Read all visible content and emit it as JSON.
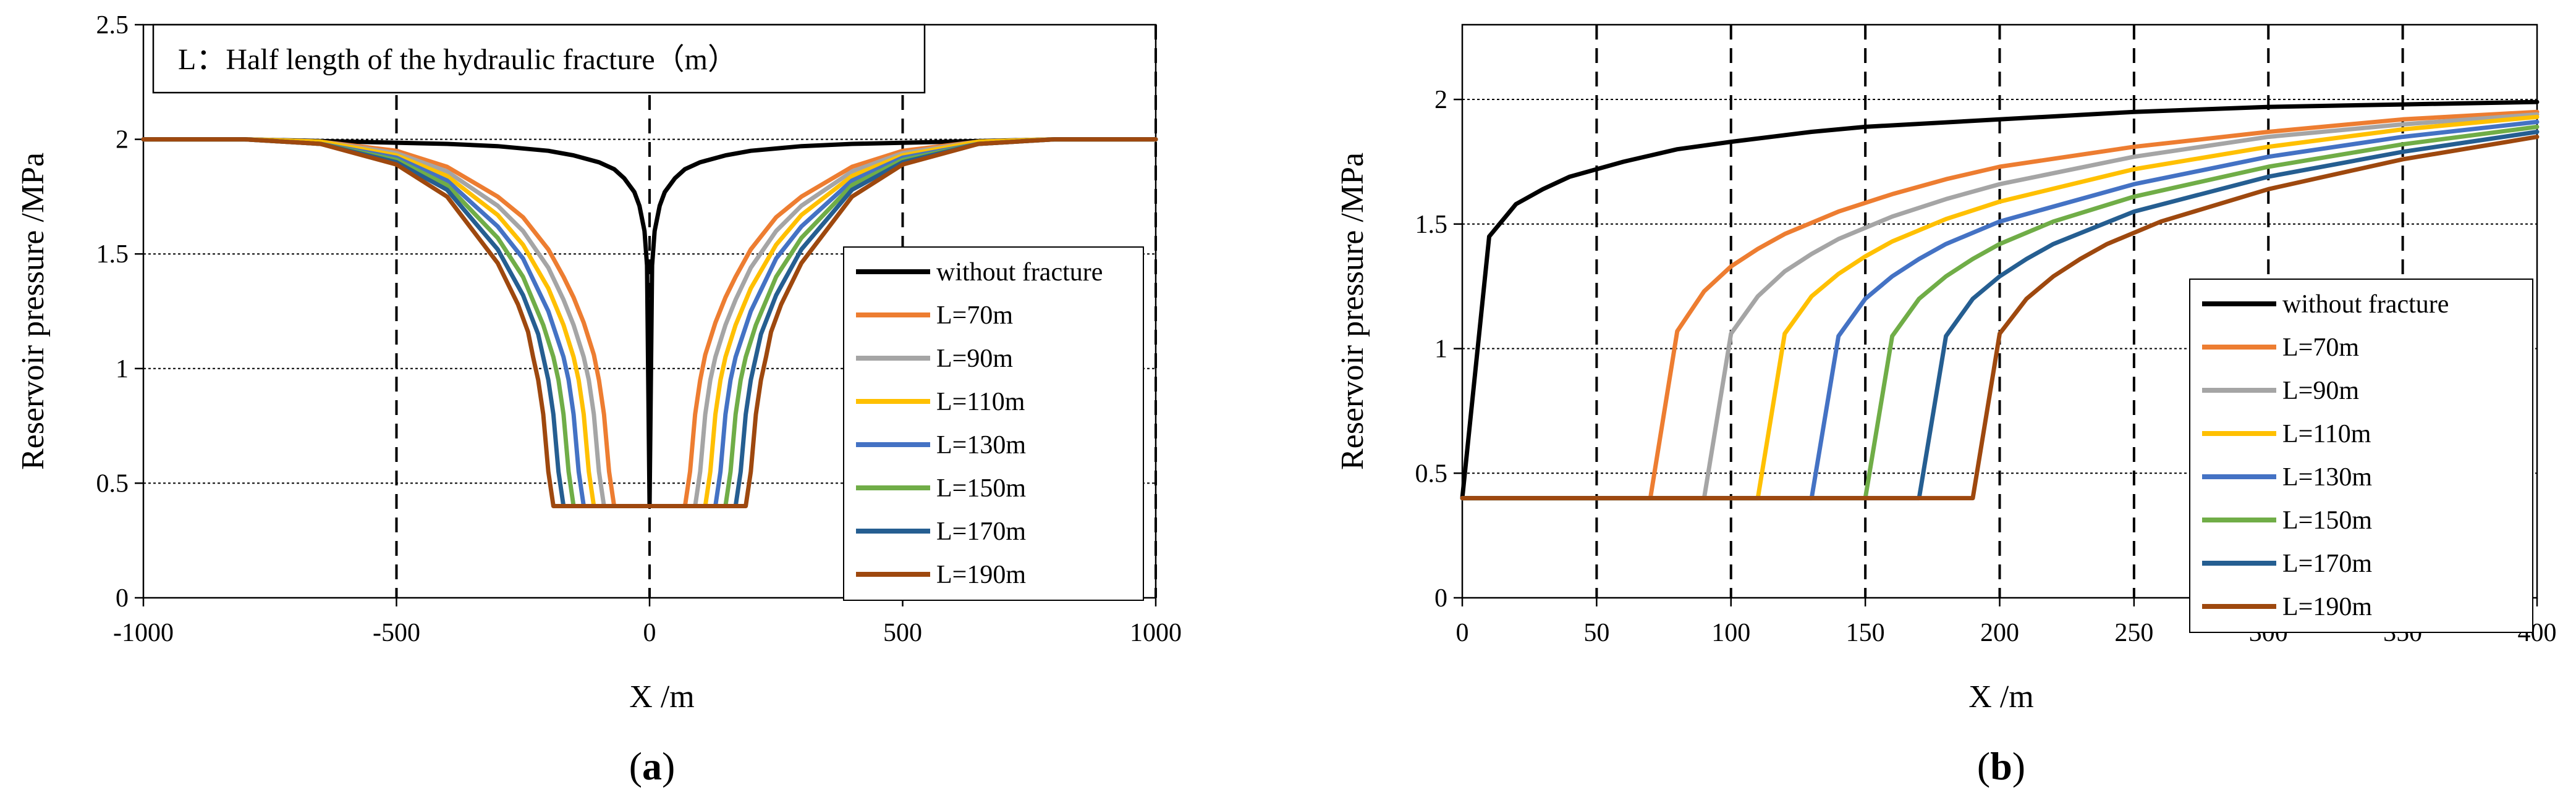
{
  "chart_data": [
    {
      "type": "line",
      "panel_label": "a",
      "xlabel": "X /m",
      "ylabel": "Reservoir pressure /MPa",
      "xlim": [
        -1000,
        1000
      ],
      "ylim": [
        0,
        2.5
      ],
      "xticks": [
        "-1000",
        "-500",
        "0",
        "500",
        "1000"
      ],
      "yticks": [
        "0",
        "0.5",
        "1",
        "1.5",
        "2",
        "2.5"
      ],
      "annotation": "L：Half length of the hydraulic fracture（m）",
      "legend_position": "right",
      "series": [
        {
          "name": "without fracture",
          "color": "#000000",
          "L": 0,
          "x": [
            -1000,
            -800,
            -600,
            -400,
            -300,
            -200,
            -150,
            -100,
            -70,
            -50,
            -30,
            -20,
            -10,
            -5,
            0,
            5,
            10,
            20,
            30,
            50,
            70,
            100,
            150,
            200,
            300,
            400,
            600,
            800,
            1000
          ],
          "values": [
            2.0,
            2.0,
            1.99,
            1.98,
            1.97,
            1.95,
            1.93,
            1.9,
            1.87,
            1.83,
            1.77,
            1.71,
            1.6,
            1.45,
            0.4,
            1.45,
            1.6,
            1.71,
            1.77,
            1.83,
            1.87,
            1.9,
            1.93,
            1.95,
            1.97,
            1.98,
            1.99,
            2.0,
            2.0
          ]
        },
        {
          "name": "L=70m",
          "color": "#ED7D31",
          "L": 70,
          "x": [
            -1000,
            -800,
            -650,
            -500,
            -400,
            -300,
            -250,
            -200,
            -170,
            -150,
            -130,
            -110,
            -100,
            -90,
            -80,
            -70,
            70,
            80,
            90,
            100,
            110,
            130,
            150,
            170,
            200,
            250,
            300,
            400,
            500,
            650,
            800,
            1000
          ],
          "values": [
            2.0,
            2.0,
            1.99,
            1.95,
            1.88,
            1.75,
            1.66,
            1.52,
            1.4,
            1.31,
            1.2,
            1.06,
            0.95,
            0.8,
            0.55,
            0.4,
            0.4,
            0.55,
            0.8,
            0.95,
            1.06,
            1.2,
            1.31,
            1.4,
            1.52,
            1.66,
            1.75,
            1.88,
            1.95,
            1.99,
            2.0,
            2.0
          ]
        },
        {
          "name": "L=90m",
          "color": "#A5A5A5",
          "L": 90,
          "x": [
            -1000,
            -800,
            -650,
            -500,
            -400,
            -300,
            -250,
            -200,
            -170,
            -150,
            -130,
            -120,
            -110,
            -100,
            -90,
            90,
            100,
            110,
            120,
            130,
            150,
            170,
            200,
            250,
            300,
            400,
            500,
            650,
            800,
            1000
          ],
          "values": [
            2.0,
            2.0,
            1.99,
            1.94,
            1.86,
            1.71,
            1.6,
            1.44,
            1.3,
            1.19,
            1.05,
            0.95,
            0.8,
            0.55,
            0.4,
            0.4,
            0.55,
            0.8,
            0.95,
            1.05,
            1.19,
            1.3,
            1.44,
            1.6,
            1.71,
            1.86,
            1.94,
            1.99,
            2.0,
            2.0
          ]
        },
        {
          "name": "L=110m",
          "color": "#FFC000",
          "L": 110,
          "x": [
            -1000,
            -800,
            -650,
            -500,
            -400,
            -300,
            -250,
            -200,
            -170,
            -150,
            -140,
            -130,
            -120,
            -110,
            110,
            120,
            130,
            140,
            150,
            170,
            200,
            250,
            300,
            400,
            500,
            650,
            800,
            1000
          ],
          "values": [
            2.0,
            2.0,
            1.99,
            1.93,
            1.84,
            1.67,
            1.54,
            1.35,
            1.19,
            1.05,
            0.95,
            0.8,
            0.55,
            0.4,
            0.4,
            0.55,
            0.8,
            0.95,
            1.05,
            1.19,
            1.35,
            1.54,
            1.67,
            1.84,
            1.93,
            1.99,
            2.0,
            2.0
          ]
        },
        {
          "name": "L=130m",
          "color": "#4472C4",
          "L": 130,
          "x": [
            -1000,
            -800,
            -650,
            -500,
            -400,
            -300,
            -250,
            -200,
            -170,
            -160,
            -150,
            -140,
            -130,
            130,
            140,
            150,
            160,
            170,
            200,
            250,
            300,
            400,
            500,
            650,
            800,
            1000
          ],
          "values": [
            2.0,
            2.0,
            1.98,
            1.92,
            1.82,
            1.62,
            1.48,
            1.25,
            1.05,
            0.95,
            0.8,
            0.55,
            0.4,
            0.4,
            0.55,
            0.8,
            0.95,
            1.05,
            1.25,
            1.48,
            1.62,
            1.82,
            1.92,
            1.98,
            2.0,
            2.0
          ]
        },
        {
          "name": "L=150m",
          "color": "#70AD47",
          "L": 150,
          "x": [
            -1000,
            -800,
            -650,
            -500,
            -400,
            -300,
            -250,
            -210,
            -190,
            -180,
            -170,
            -160,
            -150,
            150,
            160,
            170,
            180,
            190,
            210,
            250,
            300,
            400,
            500,
            650,
            800,
            1000
          ],
          "values": [
            2.0,
            2.0,
            1.98,
            1.91,
            1.8,
            1.57,
            1.4,
            1.19,
            1.05,
            0.95,
            0.8,
            0.55,
            0.4,
            0.4,
            0.55,
            0.8,
            0.95,
            1.05,
            1.19,
            1.4,
            1.57,
            1.8,
            1.91,
            1.98,
            2.0,
            2.0
          ]
        },
        {
          "name": "L=170m",
          "color": "#255E91",
          "L": 170,
          "x": [
            -1000,
            -800,
            -650,
            -500,
            -400,
            -300,
            -250,
            -220,
            -210,
            -200,
            -190,
            -180,
            -170,
            170,
            180,
            190,
            200,
            210,
            220,
            250,
            300,
            400,
            500,
            650,
            800,
            1000
          ],
          "values": [
            2.0,
            2.0,
            1.98,
            1.9,
            1.78,
            1.52,
            1.32,
            1.15,
            1.05,
            0.95,
            0.8,
            0.55,
            0.4,
            0.4,
            0.55,
            0.8,
            0.95,
            1.05,
            1.15,
            1.32,
            1.52,
            1.78,
            1.9,
            1.98,
            2.0,
            2.0
          ]
        },
        {
          "name": "L=190m",
          "color": "#9E480E",
          "L": 190,
          "x": [
            -1000,
            -800,
            -650,
            -500,
            -400,
            -300,
            -260,
            -240,
            -230,
            -220,
            -210,
            -200,
            -190,
            190,
            200,
            210,
            220,
            230,
            240,
            260,
            300,
            400,
            500,
            650,
            800,
            1000
          ],
          "values": [
            2.0,
            2.0,
            1.98,
            1.89,
            1.75,
            1.46,
            1.28,
            1.16,
            1.05,
            0.95,
            0.8,
            0.55,
            0.4,
            0.4,
            0.55,
            0.8,
            0.95,
            1.05,
            1.16,
            1.28,
            1.46,
            1.75,
            1.89,
            1.98,
            2.0,
            2.0
          ]
        }
      ]
    },
    {
      "type": "line",
      "panel_label": "b",
      "xlabel": "X /m",
      "ylabel": "Reservoir pressure /MPa",
      "xlim": [
        0,
        400
      ],
      "ylim": [
        0,
        2.3
      ],
      "xticks": [
        "0",
        "50",
        "100",
        "150",
        "200",
        "250",
        "300",
        "350",
        "400"
      ],
      "yticks": [
        "0",
        "0.5",
        "1",
        "1.5",
        "2"
      ],
      "legend_position": "bottom-right",
      "series": [
        {
          "name": "without fracture",
          "color": "#000000",
          "L": 0,
          "x": [
            0,
            10,
            20,
            30,
            40,
            50,
            60,
            80,
            100,
            130,
            150,
            200,
            250,
            300,
            350,
            400
          ],
          "values": [
            0.4,
            1.45,
            1.58,
            1.64,
            1.69,
            1.72,
            1.75,
            1.8,
            1.83,
            1.87,
            1.89,
            1.92,
            1.95,
            1.97,
            1.98,
            1.99
          ]
        },
        {
          "name": "L=70m",
          "color": "#ED7D31",
          "L": 70,
          "x": [
            0,
            70,
            80,
            90,
            100,
            110,
            120,
            140,
            160,
            180,
            200,
            250,
            300,
            350,
            400
          ],
          "values": [
            0.4,
            0.4,
            1.07,
            1.23,
            1.33,
            1.4,
            1.46,
            1.55,
            1.62,
            1.68,
            1.73,
            1.81,
            1.87,
            1.92,
            1.95
          ]
        },
        {
          "name": "L=90m",
          "color": "#A5A5A5",
          "L": 90,
          "x": [
            0,
            90,
            100,
            110,
            120,
            130,
            140,
            160,
            180,
            200,
            250,
            300,
            350,
            400
          ],
          "values": [
            0.4,
            0.4,
            1.06,
            1.21,
            1.31,
            1.38,
            1.44,
            1.53,
            1.6,
            1.66,
            1.77,
            1.85,
            1.9,
            1.94
          ]
        },
        {
          "name": "L=110m",
          "color": "#FFC000",
          "L": 110,
          "x": [
            0,
            110,
            120,
            130,
            140,
            150,
            160,
            180,
            200,
            250,
            300,
            350,
            400
          ],
          "values": [
            0.4,
            0.4,
            1.06,
            1.21,
            1.3,
            1.37,
            1.43,
            1.52,
            1.59,
            1.72,
            1.81,
            1.88,
            1.93
          ]
        },
        {
          "name": "L=130m",
          "color": "#4472C4",
          "L": 130,
          "x": [
            0,
            130,
            140,
            150,
            160,
            170,
            180,
            200,
            250,
            300,
            350,
            400
          ],
          "values": [
            0.4,
            0.4,
            1.05,
            1.2,
            1.29,
            1.36,
            1.42,
            1.51,
            1.66,
            1.77,
            1.85,
            1.91
          ]
        },
        {
          "name": "L=150m",
          "color": "#70AD47",
          "L": 150,
          "x": [
            0,
            150,
            160,
            170,
            180,
            190,
            200,
            220,
            250,
            300,
            350,
            400
          ],
          "values": [
            0.4,
            0.4,
            1.05,
            1.2,
            1.29,
            1.36,
            1.42,
            1.51,
            1.61,
            1.73,
            1.82,
            1.89
          ]
        },
        {
          "name": "L=170m",
          "color": "#255E91",
          "L": 170,
          "x": [
            0,
            170,
            180,
            190,
            200,
            210,
            220,
            250,
            300,
            350,
            400
          ],
          "values": [
            0.4,
            0.4,
            1.05,
            1.2,
            1.29,
            1.36,
            1.42,
            1.55,
            1.69,
            1.79,
            1.87
          ]
        },
        {
          "name": "L=190m",
          "color": "#9E480E",
          "L": 190,
          "x": [
            0,
            190,
            200,
            210,
            220,
            230,
            240,
            260,
            300,
            350,
            400
          ],
          "values": [
            0.4,
            0.4,
            1.06,
            1.2,
            1.29,
            1.36,
            1.42,
            1.51,
            1.64,
            1.76,
            1.85
          ]
        }
      ]
    }
  ]
}
